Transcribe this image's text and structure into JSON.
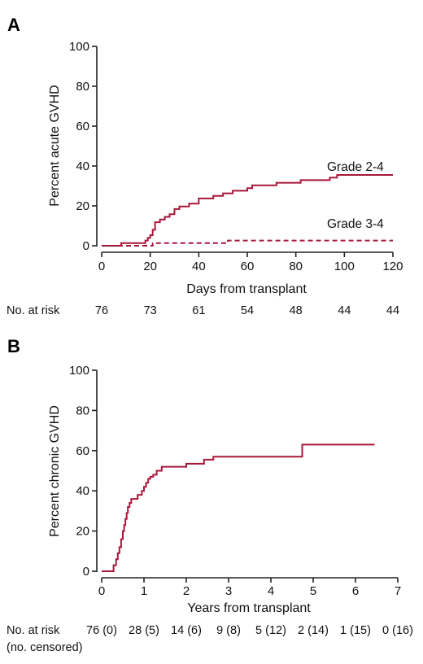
{
  "colors": {
    "curve": "#a8173a",
    "axis": "#222222",
    "text": "#111111"
  },
  "chart_data": [
    {
      "panel": "A",
      "type": "line",
      "title": "",
      "xlabel": "Days from transplant",
      "ylabel": "Percent acute GVHD",
      "xlim": [
        0,
        120
      ],
      "ylim": [
        0,
        100
      ],
      "xticks": [
        0,
        20,
        40,
        60,
        80,
        100,
        120
      ],
      "yticks": [
        0,
        20,
        40,
        60,
        80,
        100
      ],
      "grid": false,
      "step": true,
      "series": [
        {
          "name": "Grade 2-4",
          "style": "solid",
          "x": [
            0,
            8,
            18,
            19,
            20,
            21,
            22,
            24,
            26,
            28,
            30,
            32,
            36,
            40,
            42,
            46,
            50,
            54,
            60,
            62,
            72,
            82,
            84,
            94,
            97,
            120
          ],
          "y": [
            0,
            1.3,
            2.6,
            4,
            5.3,
            8,
            11.8,
            13.2,
            14.5,
            15.8,
            18.4,
            19.7,
            21.1,
            23.7,
            23.7,
            25,
            26.3,
            27.6,
            28.9,
            30.3,
            31.6,
            32.9,
            32.9,
            34.2,
            35.5,
            35.5
          ]
        },
        {
          "name": "Grade 3-4",
          "style": "dashed",
          "x": [
            0,
            21,
            52,
            120
          ],
          "y": [
            0,
            1.3,
            2.6,
            2.6
          ]
        }
      ],
      "at_risk": {
        "label": "No. at risk",
        "x": [
          0,
          20,
          40,
          60,
          80,
          100,
          120
        ],
        "values": [
          "76",
          "73",
          "61",
          "54",
          "48",
          "44",
          "44"
        ]
      }
    },
    {
      "panel": "B",
      "type": "line",
      "title": "",
      "xlabel": "Years from transplant",
      "ylabel": "Percent chronic GVHD",
      "xlim": [
        0,
        7
      ],
      "ylim": [
        0,
        100
      ],
      "xticks": [
        0,
        1,
        2,
        3,
        4,
        5,
        6,
        7
      ],
      "yticks": [
        0,
        20,
        40,
        60,
        80,
        100
      ],
      "grid": false,
      "step": true,
      "series": [
        {
          "name": "",
          "style": "solid",
          "x": [
            0,
            0.28,
            0.34,
            0.38,
            0.42,
            0.46,
            0.5,
            0.53,
            0.56,
            0.59,
            0.62,
            0.66,
            0.7,
            0.75,
            0.85,
            0.95,
            1.0,
            1.05,
            1.1,
            1.15,
            1.22,
            1.3,
            1.42,
            1.52,
            2.0,
            2.42,
            2.64,
            4.74,
            6.45
          ],
          "y": [
            0,
            3,
            6,
            9,
            12,
            16,
            20,
            23,
            26,
            29,
            32,
            34,
            36,
            36,
            38,
            40,
            42,
            44,
            46,
            47,
            48,
            50,
            52,
            52,
            53.5,
            55.5,
            57,
            63,
            63
          ]
        }
      ],
      "at_risk": {
        "label": "No. at risk",
        "sublabel": "(no. censored)",
        "x": [
          0,
          1,
          2,
          3,
          4,
          5,
          6,
          7
        ],
        "values": [
          "76 (0)",
          "28 (5)",
          "14 (6)",
          "9 (8)",
          "5 (12)",
          "2 (14)",
          "1 (15)",
          "0 (16)"
        ]
      }
    }
  ]
}
